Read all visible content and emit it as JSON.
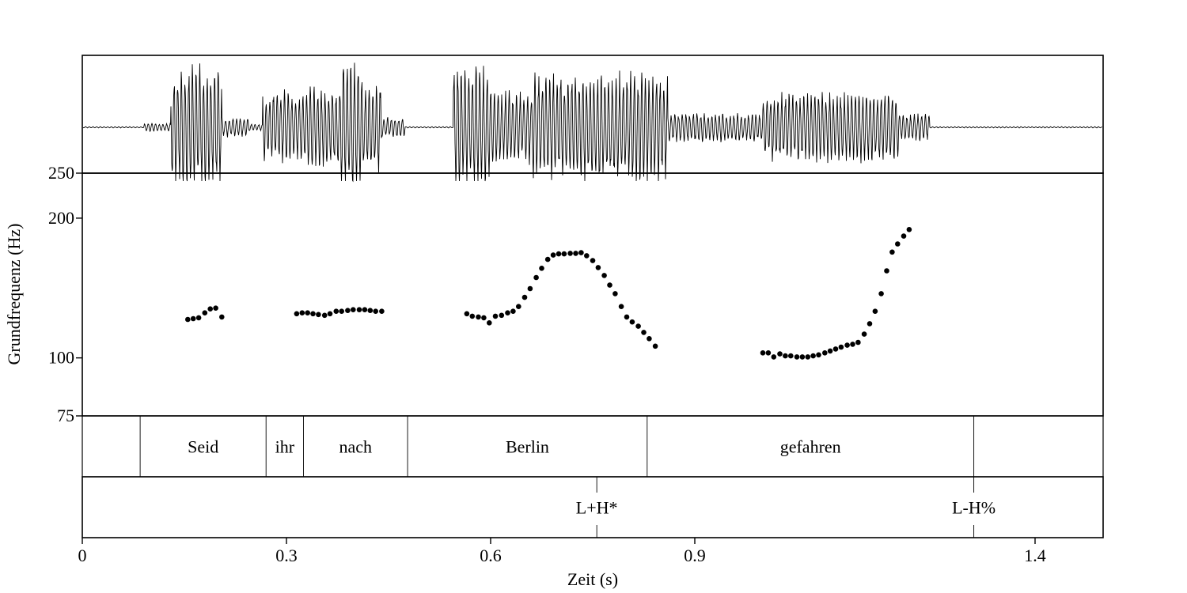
{
  "chart_data": {
    "type": "scatter",
    "title": "",
    "xlabel": "Zeit (s)",
    "ylabel": "Grundfrequenz (Hz)",
    "xlim": [
      0,
      1.5
    ],
    "ylim": [
      75,
      250
    ],
    "y_scale": "log",
    "x_ticks": [
      {
        "value": 0,
        "label": "0"
      },
      {
        "value": 0.3,
        "label": "0.3"
      },
      {
        "value": 0.6,
        "label": "0.6"
      },
      {
        "value": 0.9,
        "label": "0.9"
      },
      {
        "value": 1.4,
        "label": "1.4"
      }
    ],
    "y_ticks": [
      {
        "value": 250,
        "label": "250"
      },
      {
        "value": 200,
        "label": "200"
      },
      {
        "value": 100,
        "label": "100"
      },
      {
        "value": 75,
        "label": "75"
      }
    ],
    "grid": false,
    "waveform_segments": [
      {
        "start": 0.0,
        "end": 0.09,
        "amp": 0.01
      },
      {
        "start": 0.09,
        "end": 0.13,
        "amp": 0.06
      },
      {
        "start": 0.13,
        "end": 0.205,
        "amp": 0.95
      },
      {
        "start": 0.205,
        "end": 0.245,
        "amp": 0.15
      },
      {
        "start": 0.245,
        "end": 0.265,
        "amp": 0.05
      },
      {
        "start": 0.265,
        "end": 0.33,
        "amp": 0.55
      },
      {
        "start": 0.33,
        "end": 0.38,
        "amp": 0.62
      },
      {
        "start": 0.38,
        "end": 0.41,
        "amp": 1.0
      },
      {
        "start": 0.41,
        "end": 0.44,
        "amp": 0.7
      },
      {
        "start": 0.44,
        "end": 0.475,
        "amp": 0.15
      },
      {
        "start": 0.475,
        "end": 0.545,
        "amp": 0.01
      },
      {
        "start": 0.545,
        "end": 0.6,
        "amp": 0.95
      },
      {
        "start": 0.6,
        "end": 0.66,
        "amp": 0.55
      },
      {
        "start": 0.66,
        "end": 0.86,
        "amp": 0.82
      },
      {
        "start": 0.86,
        "end": 1.0,
        "amp": 0.22
      },
      {
        "start": 1.0,
        "end": 1.2,
        "amp": 0.52
      },
      {
        "start": 1.2,
        "end": 1.245,
        "amp": 0.2
      },
      {
        "start": 1.245,
        "end": 1.5,
        "amp": 0.01
      }
    ],
    "series": [
      {
        "points": [
          [
            0.155,
            121
          ],
          [
            0.163,
            121.5
          ],
          [
            0.171,
            122
          ],
          [
            0.18,
            125
          ],
          [
            0.188,
            127.5
          ],
          [
            0.196,
            128
          ],
          [
            0.205,
            122.5
          ],
          [
            0.315,
            124.5
          ],
          [
            0.323,
            125
          ],
          [
            0.331,
            125
          ],
          [
            0.339,
            124.5
          ],
          [
            0.347,
            124
          ],
          [
            0.356,
            123.5
          ],
          [
            0.364,
            124.5
          ],
          [
            0.373,
            126
          ],
          [
            0.381,
            126
          ],
          [
            0.39,
            126.5
          ],
          [
            0.398,
            127
          ],
          [
            0.407,
            127
          ],
          [
            0.415,
            127
          ],
          [
            0.423,
            126.5
          ],
          [
            0.431,
            126
          ],
          [
            0.44,
            126
          ],
          [
            0.565,
            124.5
          ],
          [
            0.573,
            123
          ],
          [
            0.582,
            122.5
          ],
          [
            0.59,
            122
          ],
          [
            0.598,
            119
          ],
          [
            0.607,
            123
          ],
          [
            0.616,
            123.5
          ],
          [
            0.625,
            125
          ],
          [
            0.633,
            126
          ],
          [
            0.641,
            129
          ],
          [
            0.65,
            135
          ],
          [
            0.658,
            141
          ],
          [
            0.667,
            149
          ],
          [
            0.675,
            156
          ],
          [
            0.684,
            163
          ],
          [
            0.692,
            166.5
          ],
          [
            0.7,
            167.5
          ],
          [
            0.708,
            167.5
          ],
          [
            0.717,
            168
          ],
          [
            0.725,
            168
          ],
          [
            0.733,
            168.5
          ],
          [
            0.741,
            166
          ],
          [
            0.75,
            162
          ],
          [
            0.758,
            156.5
          ],
          [
            0.767,
            150.5
          ],
          [
            0.775,
            143.5
          ],
          [
            0.783,
            137.5
          ],
          [
            0.792,
            129
          ],
          [
            0.8,
            122.5
          ],
          [
            0.808,
            119.5
          ],
          [
            0.817,
            117
          ],
          [
            0.825,
            113.5
          ],
          [
            0.833,
            110
          ],
          [
            0.842,
            106
          ],
          [
            1.0,
            102.5
          ],
          [
            1.008,
            102.5
          ],
          [
            1.016,
            100.5
          ],
          [
            1.025,
            102
          ],
          [
            1.033,
            101
          ],
          [
            1.041,
            101
          ],
          [
            1.05,
            100.5
          ],
          [
            1.058,
            100.5
          ],
          [
            1.066,
            100.5
          ],
          [
            1.074,
            101
          ],
          [
            1.082,
            101.5
          ],
          [
            1.091,
            102.5
          ],
          [
            1.099,
            103.5
          ],
          [
            1.107,
            104.5
          ],
          [
            1.115,
            105.5
          ],
          [
            1.124,
            106.5
          ],
          [
            1.132,
            107
          ],
          [
            1.14,
            108
          ],
          [
            1.149,
            112.5
          ],
          [
            1.157,
            118.5
          ],
          [
            1.165,
            126
          ],
          [
            1.174,
            137.5
          ],
          [
            1.182,
            154
          ],
          [
            1.19,
            169
          ],
          [
            1.198,
            176
          ],
          [
            1.207,
            183
          ],
          [
            1.215,
            189
          ]
        ]
      }
    ],
    "word_tier": {
      "boundaries": [
        0.085,
        0.27,
        0.325,
        0.478,
        0.83,
        1.31
      ],
      "intervals": [
        {
          "start": 0.085,
          "end": 0.27,
          "label": "Seid"
        },
        {
          "start": 0.27,
          "end": 0.325,
          "label": "ihr"
        },
        {
          "start": 0.325,
          "end": 0.478,
          "label": "nach"
        },
        {
          "start": 0.478,
          "end": 0.83,
          "label": "Berlin"
        },
        {
          "start": 0.83,
          "end": 1.31,
          "label": "gefahren"
        }
      ]
    },
    "tone_tier": {
      "points": [
        {
          "time": 0.756,
          "label": "L+H*"
        },
        {
          "time": 1.31,
          "label": "L-H%"
        }
      ]
    }
  }
}
